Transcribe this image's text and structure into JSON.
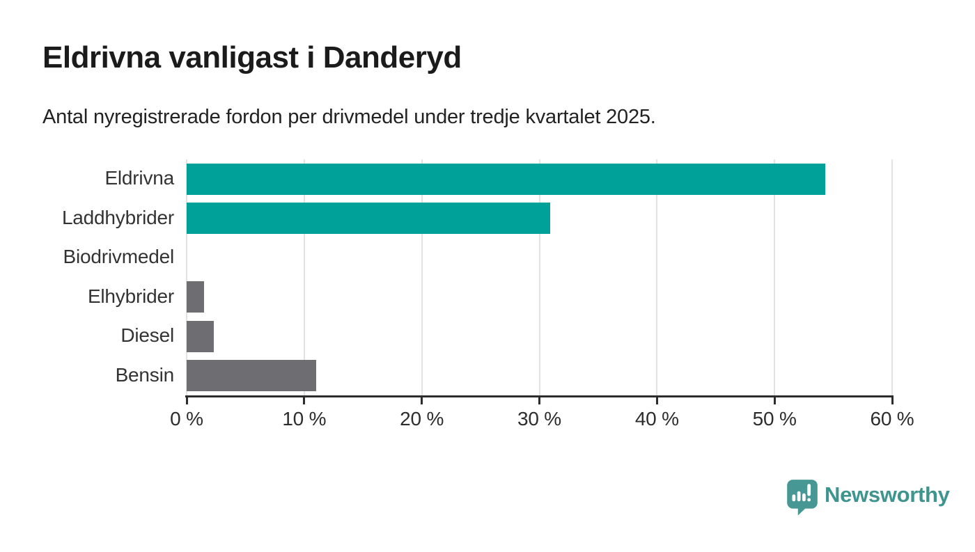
{
  "header": {
    "title": "Eldrivna vanligast i Danderyd",
    "subtitle": "Antal nyregistrerade fordon per drivmedel under tredje kvartalet 2025."
  },
  "chart_data": {
    "type": "bar",
    "orientation": "horizontal",
    "title": "Eldrivna vanligast i Danderyd",
    "subtitle": "Antal nyregistrerade fordon per drivmedel under tredje kvartalet 2025.",
    "categories": [
      "Eldrivna",
      "Laddhybrider",
      "Biodrivmedel",
      "Elhybrider",
      "Diesel",
      "Bensin"
    ],
    "values": [
      54.3,
      30.9,
      0,
      1.5,
      2.3,
      11
    ],
    "unit": "%",
    "xlim": [
      0,
      60
    ],
    "x_ticks": [
      0,
      10,
      20,
      30,
      40,
      50,
      60
    ],
    "x_tick_labels": [
      "0 %",
      "10 %",
      "20 %",
      "30 %",
      "40 %",
      "50 %",
      "60 %"
    ],
    "bar_colors": [
      "#00a199",
      "#00a199",
      "#6d6d72",
      "#6d6d72",
      "#6d6d72",
      "#6d6d72"
    ],
    "grid": true,
    "gridline_color": "#e2e2e2",
    "axis_color": "#2d2d2d",
    "label_color": "#333333",
    "legend": "none"
  },
  "branding": {
    "name": "Newsworthy",
    "icon": "bar-chart-speech-bubble-icon",
    "icon_color": "#479894",
    "text_color": "#3e948f"
  }
}
